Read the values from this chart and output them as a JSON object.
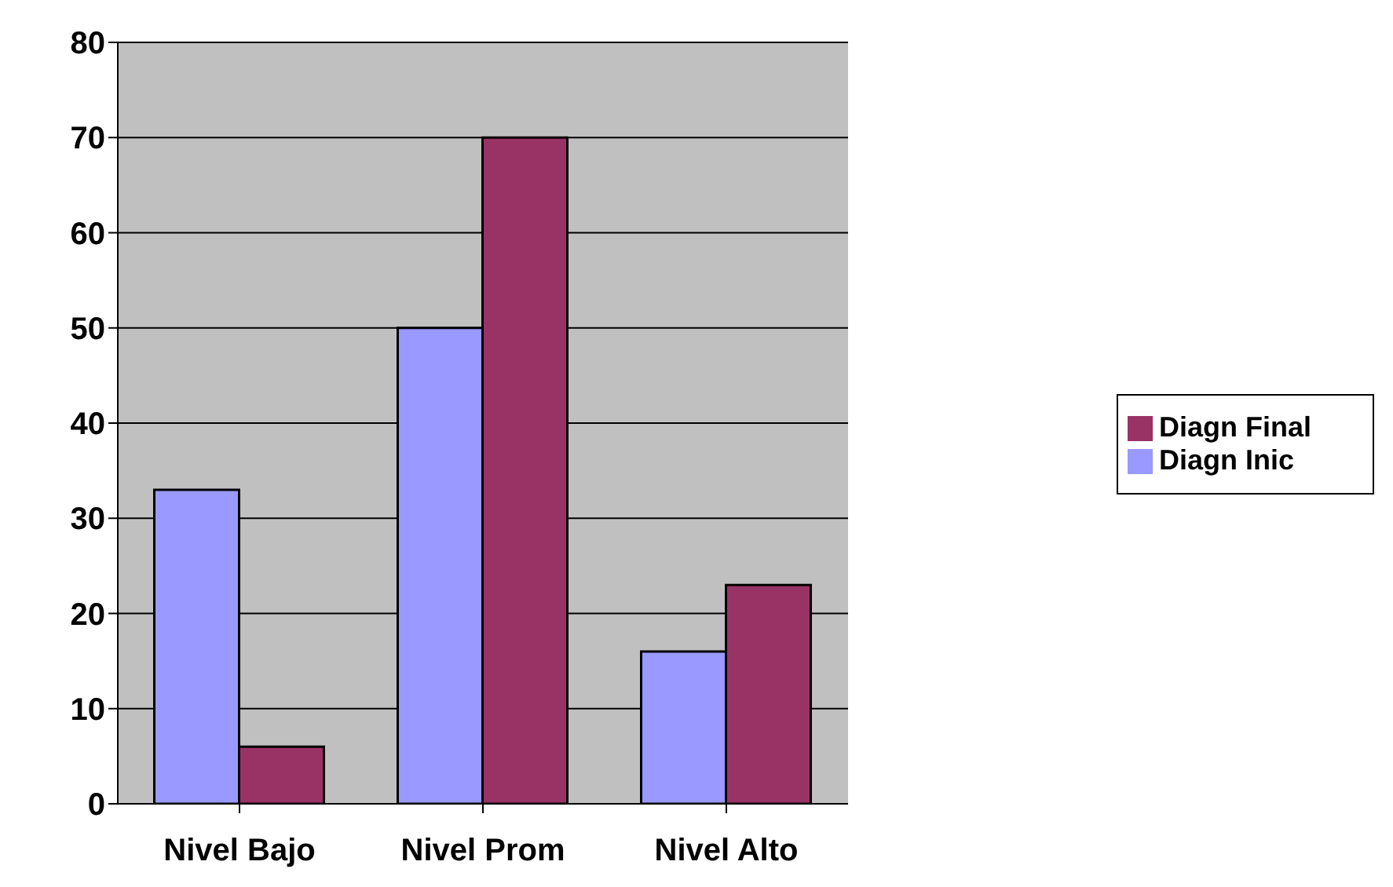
{
  "chart_data": {
    "type": "bar",
    "categories": [
      "Nivel Bajo",
      "Nivel Prom",
      "Nivel Alto"
    ],
    "series": [
      {
        "name": "Diagn Inic",
        "color": "#9999ff",
        "values": [
          33,
          50,
          16
        ]
      },
      {
        "name": "Diagn Final",
        "color": "#993366",
        "values": [
          6,
          70,
          23
        ]
      }
    ],
    "ylim": [
      0,
      80
    ],
    "yticks": [
      0,
      10,
      20,
      30,
      40,
      50,
      60,
      70,
      80
    ],
    "grid": "y",
    "legend": "right"
  }
}
